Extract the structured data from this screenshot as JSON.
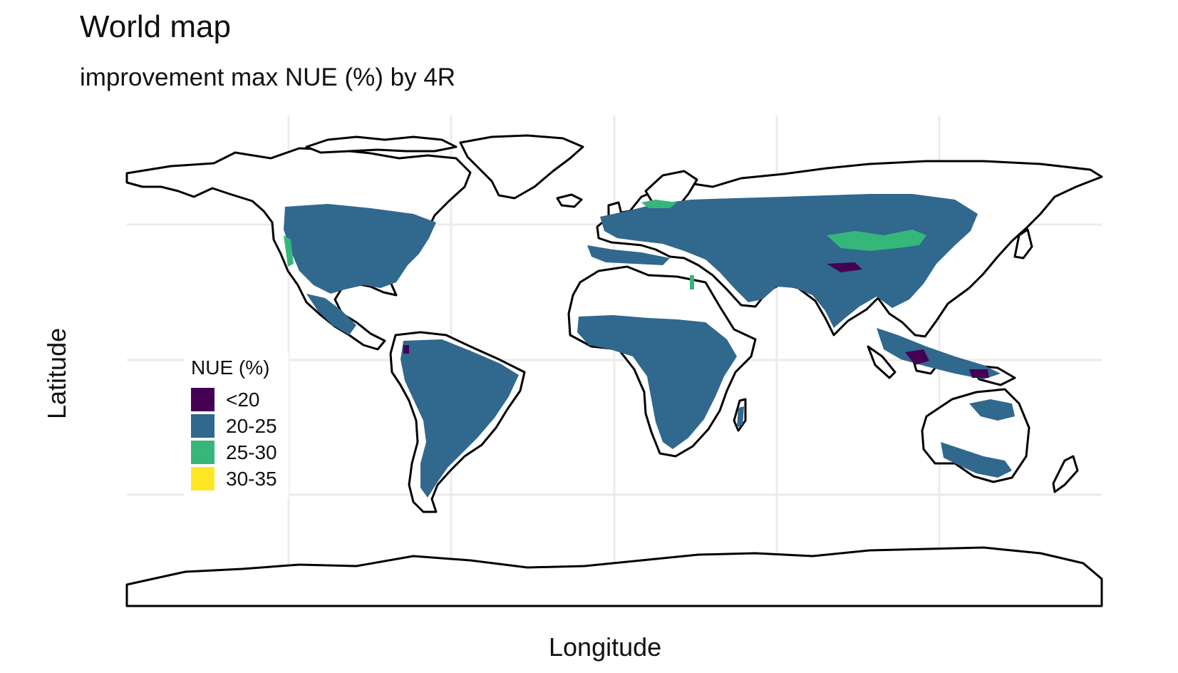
{
  "header": {
    "title": "World map",
    "subtitle": "improvement max NUE (%) by 4R"
  },
  "axes": {
    "xlabel": "Longitude",
    "ylabel": "Latitude",
    "grid": true
  },
  "legend": {
    "title": "NUE (%)",
    "placement": "left, over the Pacific Ocean",
    "items": [
      {
        "label": "<20",
        "color": "#440154"
      },
      {
        "label": "20-25",
        "color": "#31688E"
      },
      {
        "label": "25-30",
        "color": "#35B779"
      },
      {
        "label": "30-35",
        "color": "#FDE725"
      }
    ]
  },
  "colors": {
    "land_outline": "#000000",
    "land_fill": "#ffffff",
    "grid": "#ebebeb"
  },
  "map": {
    "projection": "equirectangular (plate carree)",
    "layers": [
      "country borders",
      "NUE improvement raster over cropland"
    ]
  }
}
